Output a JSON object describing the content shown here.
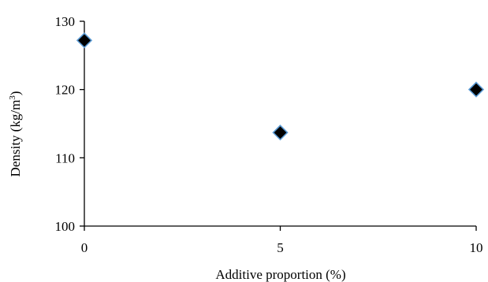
{
  "chart_data": {
    "type": "scatter",
    "title": "",
    "xlabel": "Additive proportion (%)",
    "ylabel_main": "Density (kg/m",
    "ylabel_sup": "3",
    "ylabel_close": ")",
    "xlim": [
      0,
      10
    ],
    "ylim": [
      100,
      130
    ],
    "xticks": [
      0,
      5,
      10
    ],
    "yticks": [
      100,
      110,
      120,
      130
    ],
    "grid": false,
    "marker": "diamond",
    "marker_fill": "#000000",
    "marker_edge": "#5b9bd5",
    "series": [
      {
        "x": [
          0,
          5,
          10
        ],
        "y": [
          127.2,
          113.7,
          120.0
        ]
      }
    ]
  }
}
